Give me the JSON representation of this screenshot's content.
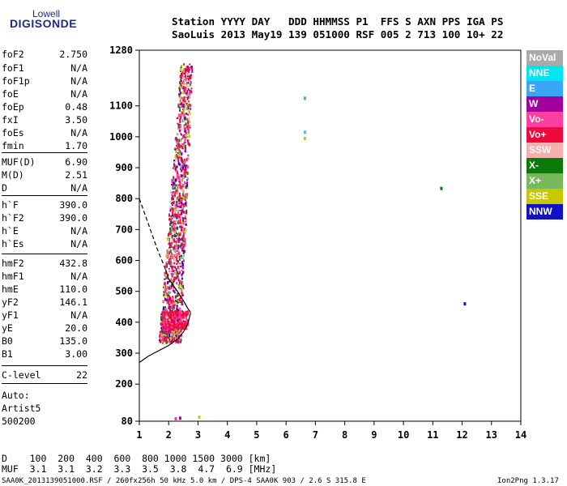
{
  "logo": {
    "line1": "Lowell",
    "line2": "DIGISONDE"
  },
  "header": {
    "row1": "Station YYYY DAY   DDD HHMMSS P1  FFS S AXN PPS IGA PS",
    "row2": "SaoLuis 2013 May19 139 051000 RSF 005 2 713 100 10+ 22"
  },
  "params": [
    {
      "key": "foF2",
      "value": "2.750"
    },
    {
      "key": "foF1",
      "value": "N/A"
    },
    {
      "key": "foF1p",
      "value": "N/A"
    },
    {
      "key": "foE",
      "value": "N/A"
    },
    {
      "key": "foEp",
      "value": "0.48"
    },
    {
      "key": "fxI",
      "value": "3.50"
    },
    {
      "key": "foEs",
      "value": "N/A"
    },
    {
      "key": "fmin",
      "value": "1.70"
    },
    {
      "key": "MUF(D)",
      "value": "6.90"
    },
    {
      "key": "M(D)",
      "value": "2.51"
    },
    {
      "key": "D",
      "value": "N/A"
    },
    {
      "key": "h`F",
      "value": "390.0"
    },
    {
      "key": "h`F2",
      "value": "390.0"
    },
    {
      "key": "h`E",
      "value": "N/A"
    },
    {
      "key": "h`Es",
      "value": "N/A"
    },
    {
      "key": "hmF2",
      "value": "432.8"
    },
    {
      "key": "hmF1",
      "value": "N/A"
    },
    {
      "key": "hmE",
      "value": "110.0"
    },
    {
      "key": "yF2",
      "value": "146.1"
    },
    {
      "key": "yF1",
      "value": "N/A"
    },
    {
      "key": "yE",
      "value": "20.0"
    },
    {
      "key": "B0",
      "value": "135.0"
    },
    {
      "key": "B1",
      "value": "3.00"
    },
    {
      "key": "C-level",
      "value": "22"
    }
  ],
  "auto": {
    "label": "Auto:",
    "program": "Artist5",
    "version": "500200"
  },
  "legend": [
    {
      "name": "NoVal",
      "color": "#a9a9a9"
    },
    {
      "name": "NNE",
      "color": "#00e5ee"
    },
    {
      "name": "E",
      "color": "#3aa6f5"
    },
    {
      "name": "W",
      "color": "#a0009e"
    },
    {
      "name": "Vo-",
      "color": "#ff3fa0"
    },
    {
      "name": "Vo+",
      "color": "#ee0a3a"
    },
    {
      "name": "SSW",
      "color": "#f4b0ac"
    },
    {
      "name": "X-",
      "color": "#0a7a0a"
    },
    {
      "name": "X+",
      "color": "#77b85a"
    },
    {
      "name": "SSE",
      "color": "#c8c800"
    },
    {
      "name": "NNW",
      "color": "#1111c8"
    }
  ],
  "footer": {
    "d_row": "D    100  200  400  600  800 1000 1500 3000 [km]",
    "muf_row": "MUF  3.1  3.1  3.2  3.3  3.5  3.8  4.7  6.9 [MHz]",
    "file_info": "SAA0K_2013139051000.RSF / 260fx256h 50 kHz 5.0 km / DPS-4 SAA0K 903 / 2.6 S 315.8 E",
    "version": "Ion2Png 1.3.17"
  },
  "chart_data": {
    "type": "scatter",
    "xlim": [
      1,
      14
    ],
    "ylim": [
      80,
      1280
    ],
    "x_ticks": [
      1,
      2,
      3,
      4,
      5,
      6,
      7,
      8,
      9,
      10,
      11,
      12,
      13,
      14
    ],
    "y_ticks": [
      80,
      200,
      300,
      400,
      500,
      600,
      700,
      800,
      900,
      1000,
      1100,
      1280
    ],
    "grid": false,
    "legend_placement": "right",
    "profile_curve": [
      [
        1.0,
        270
      ],
      [
        1.3,
        290
      ],
      [
        1.6,
        305
      ],
      [
        2.0,
        325
      ],
      [
        2.3,
        345
      ],
      [
        2.5,
        368
      ],
      [
        2.65,
        395
      ],
      [
        2.75,
        430
      ]
    ],
    "trace_dashed": [
      [
        1.0,
        800
      ],
      [
        1.3,
        720
      ],
      [
        1.6,
        640
      ],
      [
        1.9,
        570
      ]
    ],
    "trace_solid": [
      [
        1.9,
        570
      ],
      [
        2.0,
        540
      ],
      [
        2.3,
        500
      ],
      [
        2.5,
        470
      ],
      [
        2.65,
        445
      ],
      [
        2.75,
        432
      ]
    ],
    "isolated_points": [
      {
        "x": 6.6,
        "y": 1130,
        "color": "#3aa6f5"
      },
      {
        "x": 6.6,
        "y": 1020,
        "color": "#00e5ee"
      },
      {
        "x": 6.6,
        "y": 1000,
        "color": "#c8c800"
      },
      {
        "x": 11.25,
        "y": 838,
        "color": "#0a7a0a"
      },
      {
        "x": 12.05,
        "y": 465,
        "color": "#1111c8"
      },
      {
        "x": 2.2,
        "y": 93,
        "color": "#ff3fa0"
      },
      {
        "x": 2.35,
        "y": 95,
        "color": "#a0009e"
      },
      {
        "x": 3.0,
        "y": 98,
        "color": "#c8c800"
      }
    ]
  }
}
